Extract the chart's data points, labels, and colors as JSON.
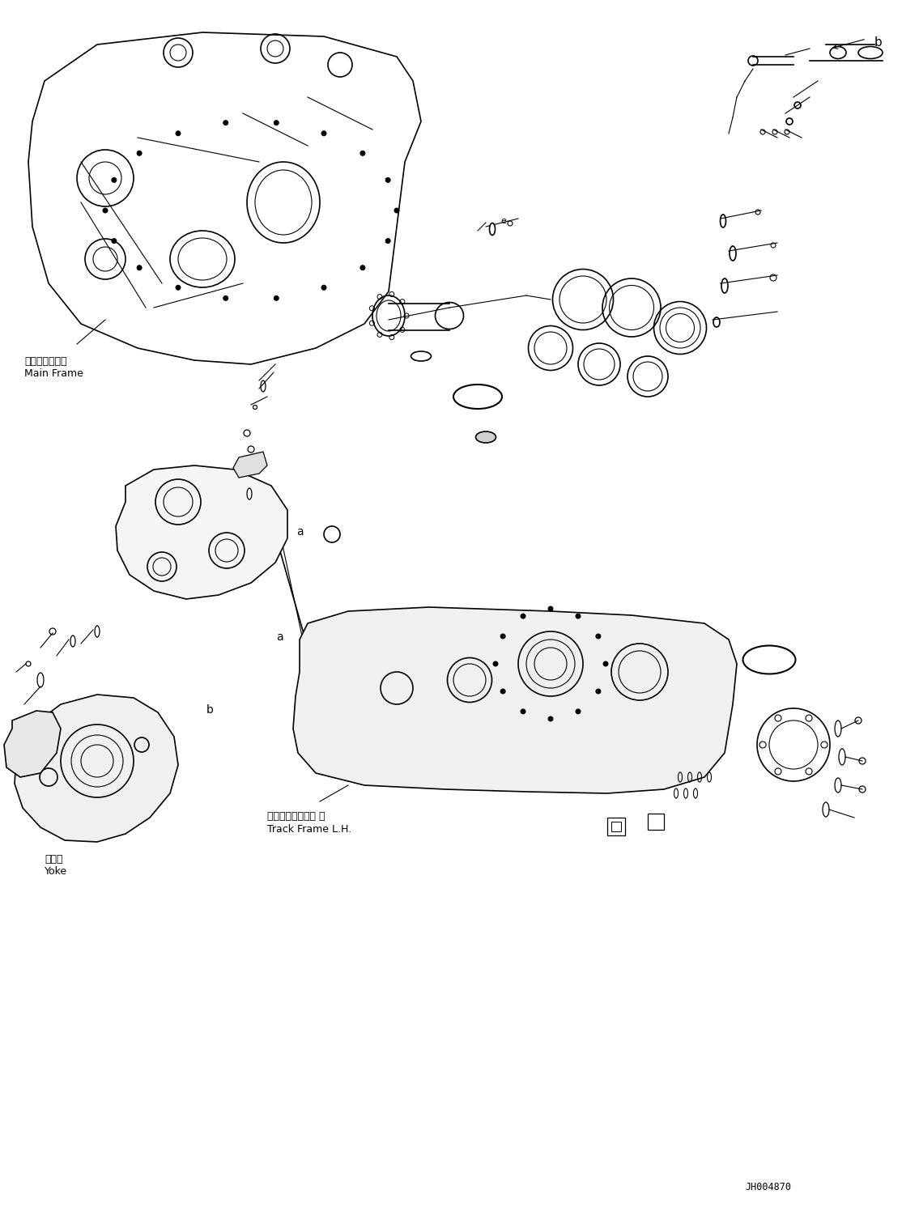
{
  "background_color": "#ffffff",
  "diagram_color": "#000000",
  "light_gray": "#888888",
  "figure_width": 11.35,
  "figure_height": 14.91,
  "dpi": 100,
  "watermark": "JH004870",
  "labels": {
    "main_frame_jp": "メインフレーム",
    "main_frame_en": "Main Frame",
    "track_frame_jp": "トラックフレーム 左",
    "track_frame_en": "Track Frame L.H.",
    "yoke_jp": "ヨーク",
    "yoke_en": "Yoke",
    "label_a": "a",
    "label_b": "b"
  }
}
